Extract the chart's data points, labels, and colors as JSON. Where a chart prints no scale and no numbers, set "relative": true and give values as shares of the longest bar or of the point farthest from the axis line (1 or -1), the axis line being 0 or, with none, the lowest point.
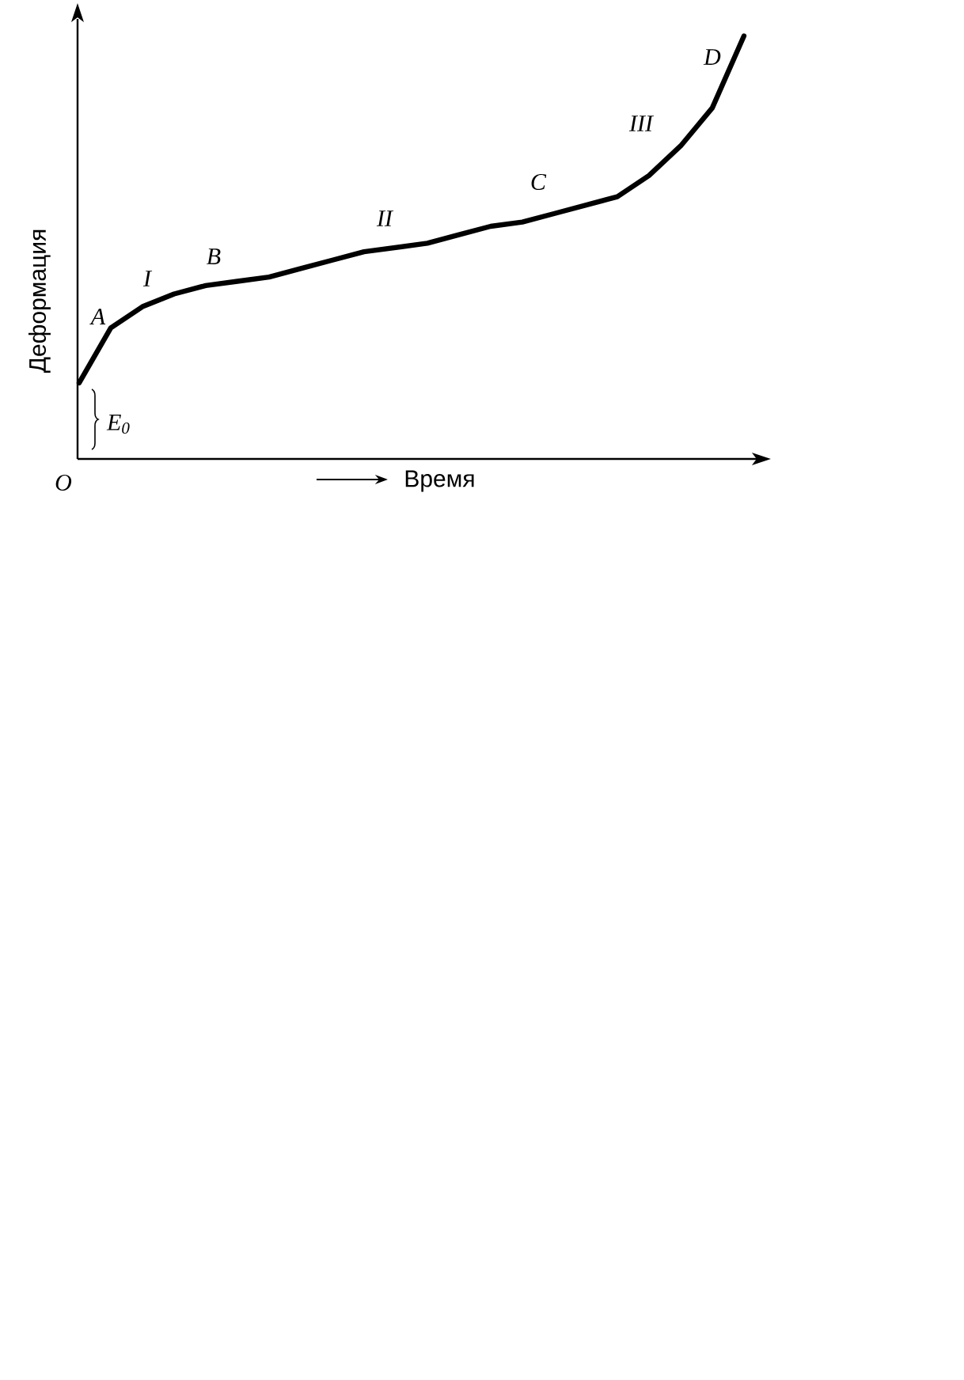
{
  "chart_data": {
    "type": "line",
    "relative": true,
    "xlabel": "Время",
    "ylabel": "Деформация",
    "categories": [
      null,
      null,
      null,
      null,
      null,
      null,
      null,
      null,
      null,
      null,
      null,
      null,
      null,
      null,
      null,
      null,
      null,
      null,
      null,
      null,
      null,
      null
    ],
    "series": [
      {
        "color": "#000000",
        "values": [
          0.18,
          0.31,
          0.36,
          0.39,
          0.41,
          0.42,
          0.43,
          0.45,
          0.47,
          0.49,
          0.5,
          0.51,
          0.53,
          0.55,
          0.56,
          0.58,
          0.6,
          0.62,
          0.67,
          0.74,
          0.83,
          1
        ]
      }
    ],
    "annotations": [
      "A",
      "I",
      "B",
      "II",
      "C",
      "III",
      "D",
      "E$_{0}$",
      "O"
    ],
    "marker": "none",
    "line_style": "solid"
  }
}
